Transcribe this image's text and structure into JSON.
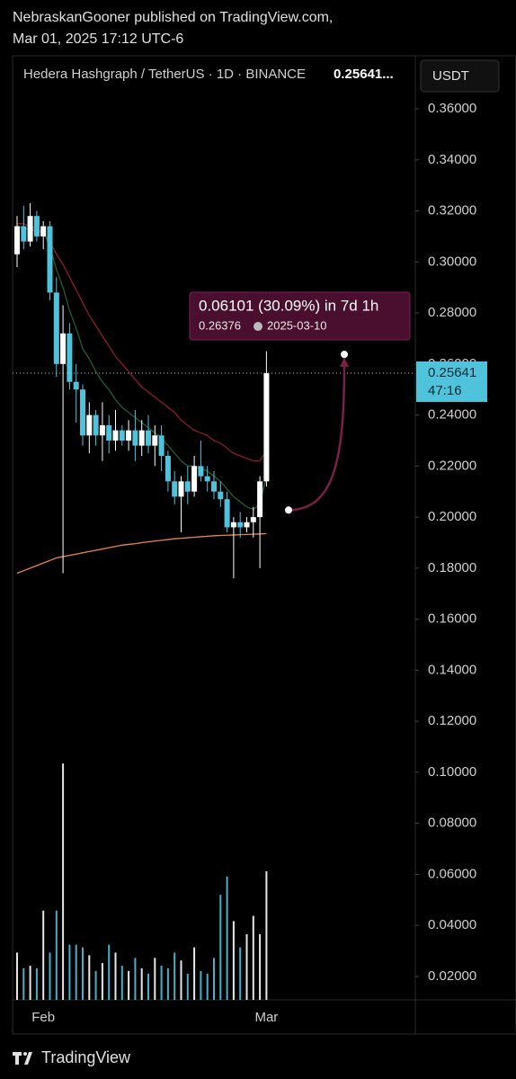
{
  "publisher": "NebraskanGooner published on TradingView.com,",
  "published_date": "Mar 01, 2025 17:12 UTC-6",
  "footer": "TradingView",
  "chart_data": {
    "type": "candlestick",
    "title": "Hedera Hashgraph / TetherUS · 1D · BINANCE",
    "title_price": "0.25641...",
    "currency": "USDT",
    "categories": [
      null,
      null,
      null,
      null,
      "Feb",
      null,
      null,
      null,
      null,
      null,
      null,
      null,
      null,
      null,
      null,
      null,
      null,
      null,
      null,
      null,
      null,
      null,
      null,
      null,
      null,
      null,
      null,
      null,
      null,
      null,
      null,
      null,
      null,
      null,
      null,
      null,
      null,
      null,
      "Mar"
    ],
    "open": [
      0.303,
      0.314,
      0.308,
      0.318,
      0.31,
      0.314,
      0.288,
      0.26,
      0.272,
      0.253,
      0.25,
      0.232,
      0.24,
      0.232,
      0.236,
      0.23,
      0.234,
      0.23,
      0.234,
      0.228,
      0.234,
      0.228,
      0.232,
      0.224,
      0.214,
      0.208,
      0.214,
      0.21,
      0.22,
      0.216,
      0.214,
      0.21,
      0.207,
      0.196,
      0.198,
      0.196,
      0.198,
      0.2,
      0.214
    ],
    "high": [
      0.318,
      0.322,
      0.323,
      0.32,
      0.316,
      0.316,
      0.294,
      0.283,
      0.276,
      0.26,
      0.252,
      0.245,
      0.242,
      0.245,
      0.24,
      0.242,
      0.236,
      0.238,
      0.242,
      0.238,
      0.24,
      0.236,
      0.236,
      0.226,
      0.218,
      0.216,
      0.22,
      0.224,
      0.23,
      0.22,
      0.218,
      0.214,
      0.21,
      0.2,
      0.202,
      0.2,
      0.204,
      0.216,
      0.265
    ],
    "low": [
      0.298,
      0.305,
      0.306,
      0.308,
      0.305,
      0.285,
      0.255,
      0.178,
      0.25,
      0.237,
      0.228,
      0.225,
      0.228,
      0.222,
      0.225,
      0.226,
      0.228,
      0.226,
      0.222,
      0.224,
      0.225,
      0.22,
      0.218,
      0.21,
      0.205,
      0.194,
      0.205,
      0.208,
      0.214,
      0.21,
      0.207,
      0.204,
      0.194,
      0.176,
      0.192,
      0.194,
      0.192,
      0.18,
      0.212
    ],
    "close": [
      0.314,
      0.308,
      0.318,
      0.31,
      0.314,
      0.288,
      0.26,
      0.272,
      0.253,
      0.25,
      0.232,
      0.24,
      0.232,
      0.236,
      0.23,
      0.234,
      0.23,
      0.234,
      0.228,
      0.234,
      0.228,
      0.232,
      0.224,
      0.214,
      0.208,
      0.214,
      0.21,
      0.22,
      0.216,
      0.214,
      0.21,
      0.207,
      0.196,
      0.198,
      0.196,
      0.198,
      0.2,
      0.214,
      0.25641
    ],
    "volume": [
      18,
      12,
      13,
      12,
      34,
      18,
      34,
      90,
      21,
      21,
      20,
      17,
      11,
      14,
      21,
      18,
      13,
      11,
      16,
      12,
      10,
      16,
      13,
      12,
      18,
      15,
      10,
      20,
      11,
      10,
      16,
      40,
      47,
      30,
      20,
      25,
      32,
      25,
      49
    ],
    "volume_lim": [
      0,
      100
    ],
    "up_color": "#ffffff",
    "down_color": "#4fc3dc",
    "moving_averages": [
      {
        "color": "#8e1b2e",
        "values": [
          0.315,
          0.315,
          0.314,
          0.313,
          0.311,
          0.308,
          0.303,
          0.299,
          0.294,
          0.289,
          0.284,
          0.279,
          0.275,
          0.271,
          0.267,
          0.263,
          0.26,
          0.257,
          0.254,
          0.251,
          0.249,
          0.247,
          0.245,
          0.243,
          0.241,
          0.238,
          0.236,
          0.234,
          0.233,
          0.232,
          0.23,
          0.229,
          0.227,
          0.225,
          0.224,
          0.223,
          0.222,
          0.222,
          0.226
        ]
      },
      {
        "color": "#1f5e36",
        "values": [
          0.314,
          0.313,
          0.313,
          0.312,
          0.312,
          0.306,
          0.297,
          0.29,
          0.281,
          0.274,
          0.266,
          0.262,
          0.257,
          0.253,
          0.25,
          0.246,
          0.243,
          0.241,
          0.239,
          0.237,
          0.235,
          0.233,
          0.231,
          0.228,
          0.225,
          0.222,
          0.22,
          0.22,
          0.219,
          0.218,
          0.216,
          0.214,
          0.211,
          0.208,
          0.206,
          0.204,
          0.203,
          0.205,
          0.216
        ]
      },
      {
        "color": "#e8844a",
        "values": [
          0.178,
          0.179,
          0.18,
          0.181,
          0.182,
          0.183,
          0.184,
          0.1845,
          0.185,
          0.1855,
          0.186,
          0.1865,
          0.187,
          0.1875,
          0.188,
          0.1885,
          0.189,
          0.1893,
          0.1896,
          0.19,
          0.1903,
          0.1906,
          0.1909,
          0.1912,
          0.1915,
          0.1917,
          0.1919,
          0.1921,
          0.1923,
          0.1925,
          0.1927,
          0.1928,
          0.1929,
          0.193,
          0.1931,
          0.1932,
          0.1933,
          0.1934,
          0.1935
        ]
      }
    ],
    "last_price": 0.25641,
    "countdown": "47:16",
    "measure": {
      "change_label": "0.06101 (30.09%) in 7d 1h",
      "start": 0.20275,
      "target": 0.26376,
      "target_date": "2025-03-10"
    },
    "ylim": [
      0.0108,
      0.3808
    ],
    "yticks": [
      {
        "value": 0.36,
        "label": "0.36000"
      },
      {
        "value": 0.34,
        "label": "0.34000"
      },
      {
        "value": 0.32,
        "label": "0.32000"
      },
      {
        "value": 0.3,
        "label": "0.30000"
      },
      {
        "value": 0.28,
        "label": "0.28000"
      },
      {
        "value": 0.26,
        "label": "0.26000"
      },
      {
        "value": 0.24,
        "label": "0.24000"
      },
      {
        "value": 0.22,
        "label": "0.22000"
      },
      {
        "value": 0.2,
        "label": "0.20000"
      },
      {
        "value": 0.18,
        "label": "0.18000"
      },
      {
        "value": 0.16,
        "label": "0.16000"
      },
      {
        "value": 0.14,
        "label": "0.14000"
      },
      {
        "value": 0.12,
        "label": "0.12000"
      },
      {
        "value": 0.1,
        "label": "0.10000"
      },
      {
        "value": 0.08,
        "label": "0.08000"
      },
      {
        "value": 0.06,
        "label": "0.06000"
      },
      {
        "value": 0.04,
        "label": "0.04000"
      },
      {
        "value": 0.02,
        "label": "0.02000"
      }
    ]
  }
}
